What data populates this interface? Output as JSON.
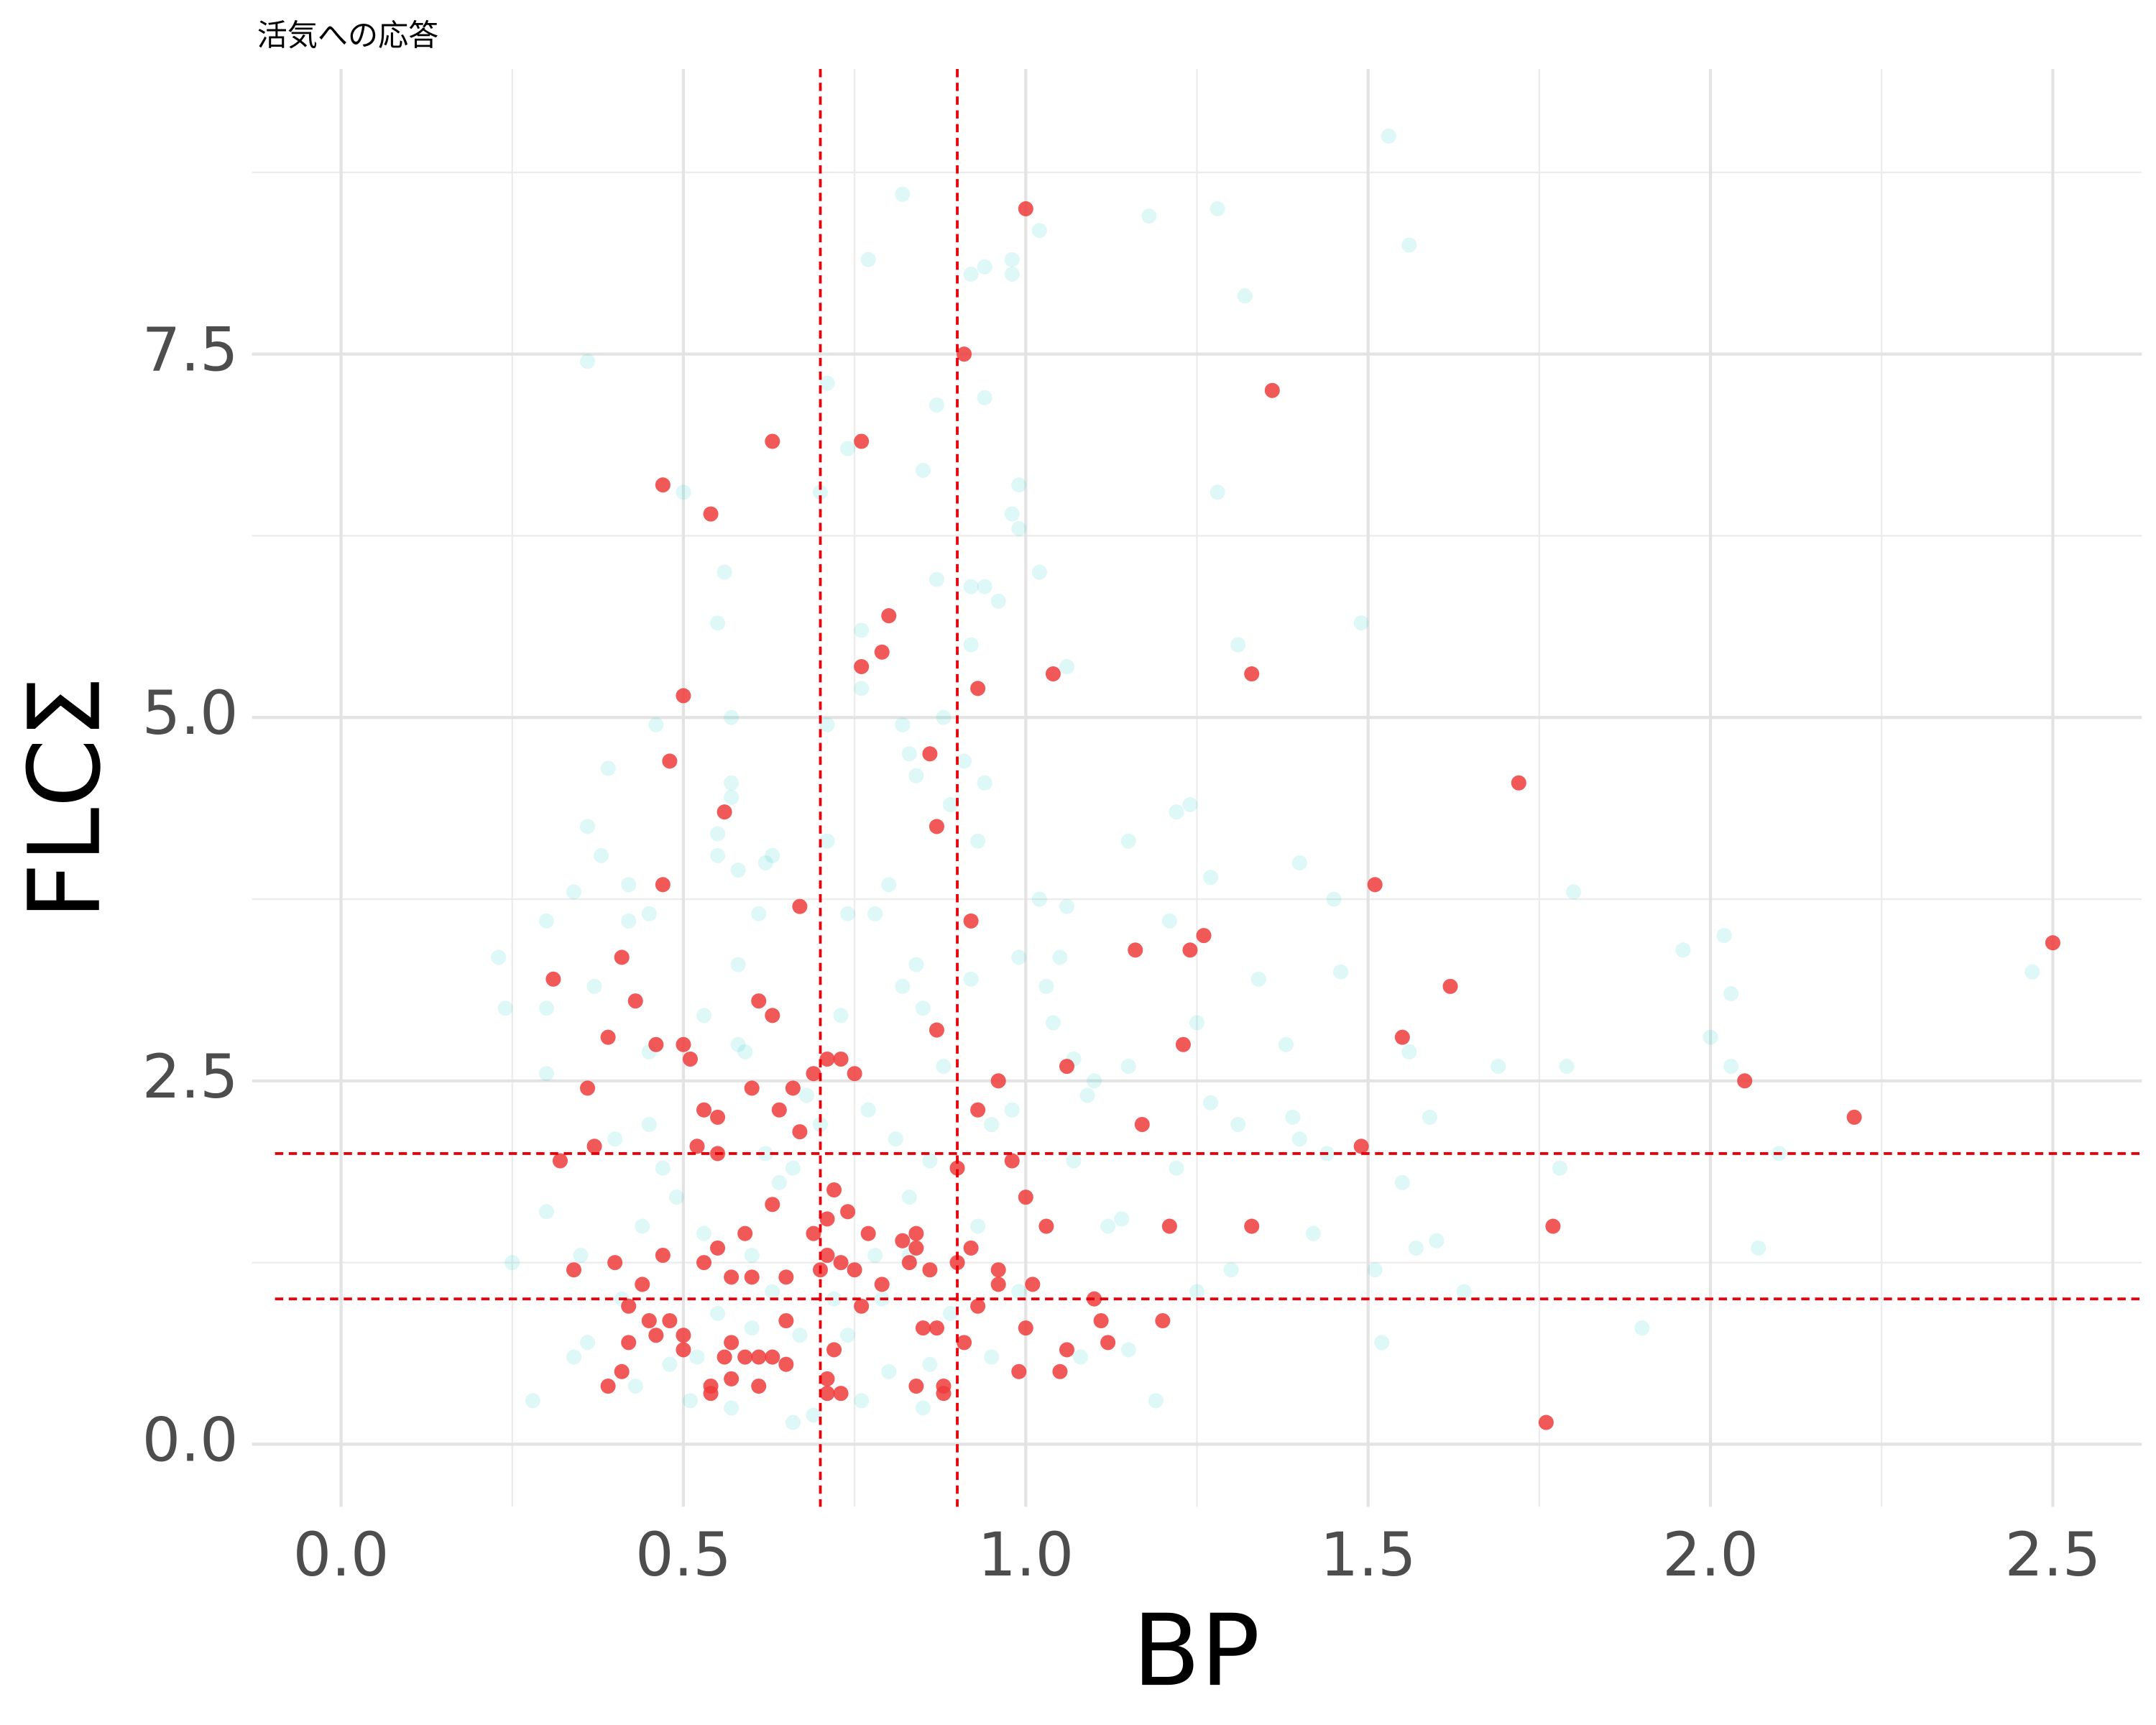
{
  "chart_data": {
    "type": "scatter",
    "title": "活気への応答",
    "x_label": "BP",
    "y_label": "FLCΣ",
    "xlim": [
      -0.13,
      2.63
    ],
    "ylim": [
      -0.43,
      9.5
    ],
    "xticks": [
      {
        "value": 0,
        "label": "0.0"
      },
      0.5,
      {
        "value": 1,
        "label": "1.0"
      },
      1.5,
      {
        "value": 2,
        "label": "2.0"
      },
      2.5
    ],
    "yticks": [
      {
        "value": 0,
        "label": "0.0"
      },
      2.5,
      {
        "value": 5,
        "label": "5.0"
      },
      7.5
    ],
    "xminorticks": [
      0.25,
      0.75,
      1.25,
      1.75,
      2.25
    ],
    "yminorticks": [
      1.25,
      3.75,
      6.25,
      8.75
    ],
    "grid": true,
    "vlines": [
      0.7,
      0.9
    ],
    "hlines": [
      1,
      2
    ],
    "line_color": "#e8000b",
    "series": [
      {
        "color": "#00bfc4",
        "opacity": 0.13,
        "x": [
          1.53,
          0.82,
          1.28,
          1.18,
          1.02,
          1.56,
          0.77,
          0.98,
          0.94,
          0.92,
          0.98,
          1.32,
          0.36,
          0.71,
          0.94,
          0.87,
          0.74,
          0.85,
          0.99,
          0.7,
          0.5,
          1.28,
          0.98,
          0.99,
          0.56,
          1.02,
          0.87,
          0.92,
          0.94,
          0.96,
          0.55,
          1.49,
          0.76,
          0.92,
          1.31,
          1.06,
          0.76,
          0.88,
          0.57,
          0.46,
          0.82,
          0.71,
          0.83,
          0.39,
          0.91,
          0.84,
          0.94,
          0.57,
          0.57,
          0.89,
          1.24,
          1.22,
          0.36,
          0.55,
          0.71,
          0.93,
          1.15,
          0.38,
          0.55,
          0.63,
          1.4,
          0.62,
          0.58,
          0.42,
          0.8,
          1.27,
          0.34,
          1.8,
          1.02,
          1.45,
          1.06,
          0.45,
          0.61,
          0.74,
          0.78,
          0.3,
          0.42,
          1.21,
          1.96,
          2.02,
          0.23,
          0.99,
          1.05,
          0.58,
          0.84,
          2.47,
          1.46,
          1.34,
          0.37,
          0.82,
          0.92,
          1.03,
          2.03,
          0.24,
          0.3,
          0.53,
          0.73,
          0.85,
          1.04,
          1.25,
          2.0,
          0.58,
          1.38,
          0.45,
          1.56,
          1.07,
          2.03,
          1.69,
          1.79,
          1.15,
          0.3,
          1.1,
          0.68,
          1.09,
          1.27,
          0.98,
          1.39,
          1.59,
          1.31,
          0.95,
          1.4,
          0.81,
          0.4,
          1.44,
          2.1,
          0.62,
          0.86,
          1.78,
          0.47,
          0.66,
          0.3,
          1.55,
          0.83,
          1.14,
          0.44,
          1.42,
          1.6,
          1.57,
          2.07,
          1.3,
          1.51,
          0.25,
          0.6,
          0.78,
          0.83,
          1.64,
          0.79,
          1.25,
          1.9,
          1.52,
          0.28,
          0.69,
          0.66,
          0.85,
          1.19,
          0.36,
          0.48,
          0.52,
          0.6,
          0.67,
          0.74,
          0.8,
          0.89,
          0.95,
          1.08,
          1.15,
          0.34,
          0.43,
          0.51,
          0.57,
          0.76,
          0.63,
          0.53,
          0.49,
          0.64,
          0.7,
          0.77,
          0.88,
          0.59,
          0.45,
          0.35,
          0.41,
          0.55,
          0.72,
          0.93,
          1.07,
          1.12,
          1.22,
          0.99,
          0.86
        ],
        "values": [
          9.0,
          8.6,
          8.5,
          8.45,
          8.35,
          8.25,
          8.15,
          8.15,
          8.1,
          8.05,
          8.05,
          7.9,
          7.45,
          7.3,
          7.2,
          7.15,
          6.85,
          6.7,
          6.6,
          6.55,
          6.55,
          6.55,
          6.4,
          6.3,
          6.0,
          6.0,
          5.95,
          5.9,
          5.9,
          5.8,
          5.65,
          5.65,
          5.6,
          5.5,
          5.5,
          5.35,
          5.2,
          5.0,
          5.0,
          4.95,
          4.95,
          4.95,
          4.75,
          4.65,
          4.7,
          4.6,
          4.55,
          4.55,
          4.45,
          4.4,
          4.4,
          4.35,
          4.25,
          4.2,
          4.15,
          4.15,
          4.15,
          4.05,
          4.05,
          4.05,
          4.0,
          4.0,
          3.95,
          3.85,
          3.85,
          3.9,
          3.8,
          3.8,
          3.75,
          3.75,
          3.7,
          3.65,
          3.65,
          3.65,
          3.65,
          3.6,
          3.6,
          3.6,
          3.4,
          3.5,
          3.35,
          3.35,
          3.35,
          3.3,
          3.3,
          3.25,
          3.25,
          3.2,
          3.15,
          3.15,
          3.2,
          3.15,
          3.1,
          3.0,
          3.0,
          2.95,
          2.95,
          3.0,
          2.9,
          2.9,
          2.8,
          2.75,
          2.75,
          2.7,
          2.7,
          2.65,
          2.6,
          2.6,
          2.6,
          2.6,
          2.55,
          2.5,
          2.4,
          2.4,
          2.35,
          2.3,
          2.25,
          2.25,
          2.2,
          2.2,
          2.1,
          2.1,
          2.1,
          2.0,
          2.0,
          2.0,
          1.95,
          1.9,
          1.9,
          1.9,
          1.6,
          1.8,
          1.7,
          1.55,
          1.5,
          1.45,
          1.4,
          1.35,
          1.35,
          1.2,
          1.2,
          1.25,
          1.3,
          1.3,
          1.3,
          1.05,
          1.0,
          1.05,
          0.8,
          0.7,
          0.3,
          0.2,
          0.15,
          0.25,
          0.3,
          0.7,
          0.55,
          0.6,
          0.8,
          0.75,
          0.75,
          0.5,
          0.9,
          0.6,
          0.6,
          0.65,
          0.6,
          0.4,
          0.3,
          0.25,
          0.3,
          1.05,
          1.45,
          1.7,
          1.8,
          2.2,
          2.3,
          2.6,
          2.7,
          2.2,
          1.3,
          1.0,
          0.9,
          1.0,
          1.5,
          1.95,
          1.5,
          1.9,
          1.05,
          0.55
        ]
      },
      {
        "color": "#ee3b3b",
        "opacity": 0.85,
        "x": [
          1.0,
          0.91,
          1.36,
          0.63,
          0.76,
          0.47,
          0.54,
          0.8,
          0.79,
          0.76,
          1.04,
          1.33,
          0.93,
          0.5,
          0.48,
          0.86,
          1.72,
          0.56,
          0.87,
          0.47,
          1.51,
          0.67,
          0.92,
          1.26,
          2.5,
          1.24,
          1.16,
          0.41,
          0.31,
          1.62,
          0.43,
          0.61,
          0.63,
          0.87,
          0.39,
          1.55,
          0.46,
          0.5,
          1.23,
          0.51,
          0.71,
          0.73,
          1.06,
          0.69,
          0.75,
          0.36,
          0.6,
          0.66,
          0.96,
          2.05,
          0.53,
          0.64,
          0.93,
          2.21,
          0.55,
          1.17,
          0.67,
          0.37,
          0.52,
          0.55,
          1.49,
          0.32,
          0.98,
          0.9,
          0.72,
          1.0,
          0.63,
          0.74,
          0.71,
          1.77,
          1.03,
          1.21,
          1.33,
          0.59,
          0.69,
          0.77,
          0.84,
          0.82,
          0.84,
          0.92,
          0.55,
          0.47,
          0.71,
          0.73,
          0.53,
          0.7,
          0.75,
          0.34,
          0.4,
          0.83,
          0.86,
          0.9,
          0.96,
          0.57,
          0.6,
          0.65,
          0.44,
          0.79,
          0.96,
          1.01,
          1.1,
          0.42,
          0.76,
          0.93,
          0.48,
          0.45,
          0.65,
          1.11,
          1.2,
          0.85,
          0.87,
          1.0,
          0.46,
          0.5,
          0.91,
          0.57,
          0.42,
          1.06,
          1.12,
          0.72,
          0.5,
          0.61,
          0.63,
          0.56,
          0.59,
          0.65,
          0.41,
          0.71,
          0.99,
          1.05,
          0.57,
          0.54,
          0.39,
          0.61,
          0.84,
          0.88,
          0.73,
          0.54,
          0.71,
          0.88,
          1.76
        ],
        "values": [
          8.5,
          7.5,
          7.25,
          6.9,
          6.9,
          6.6,
          6.4,
          5.7,
          5.45,
          5.35,
          5.3,
          5.3,
          5.2,
          5.15,
          4.7,
          4.75,
          4.55,
          4.35,
          4.25,
          3.85,
          3.85,
          3.7,
          3.6,
          3.5,
          3.45,
          3.4,
          3.4,
          3.35,
          3.2,
          3.15,
          3.05,
          3.05,
          2.95,
          2.85,
          2.8,
          2.8,
          2.75,
          2.75,
          2.75,
          2.65,
          2.65,
          2.65,
          2.6,
          2.55,
          2.55,
          2.45,
          2.45,
          2.45,
          2.5,
          2.5,
          2.3,
          2.3,
          2.3,
          2.25,
          2.25,
          2.2,
          2.15,
          2.05,
          2.05,
          2.0,
          2.05,
          1.95,
          1.95,
          1.9,
          1.75,
          1.7,
          1.65,
          1.6,
          1.55,
          1.5,
          1.5,
          1.5,
          1.5,
          1.45,
          1.45,
          1.45,
          1.45,
          1.4,
          1.35,
          1.35,
          1.35,
          1.3,
          1.3,
          1.25,
          1.25,
          1.2,
          1.2,
          1.2,
          1.25,
          1.25,
          1.2,
          1.25,
          1.2,
          1.15,
          1.15,
          1.15,
          1.1,
          1.1,
          1.1,
          1.1,
          1.0,
          0.95,
          0.95,
          0.95,
          0.85,
          0.85,
          0.85,
          0.85,
          0.85,
          0.8,
          0.8,
          0.8,
          0.75,
          0.75,
          0.7,
          0.7,
          0.7,
          0.65,
          0.7,
          0.65,
          0.65,
          0.6,
          0.6,
          0.6,
          0.6,
          0.55,
          0.5,
          0.45,
          0.5,
          0.5,
          0.45,
          0.4,
          0.4,
          0.4,
          0.4,
          0.4,
          0.35,
          0.35,
          0.35,
          0.35,
          0.15
        ]
      }
    ]
  }
}
